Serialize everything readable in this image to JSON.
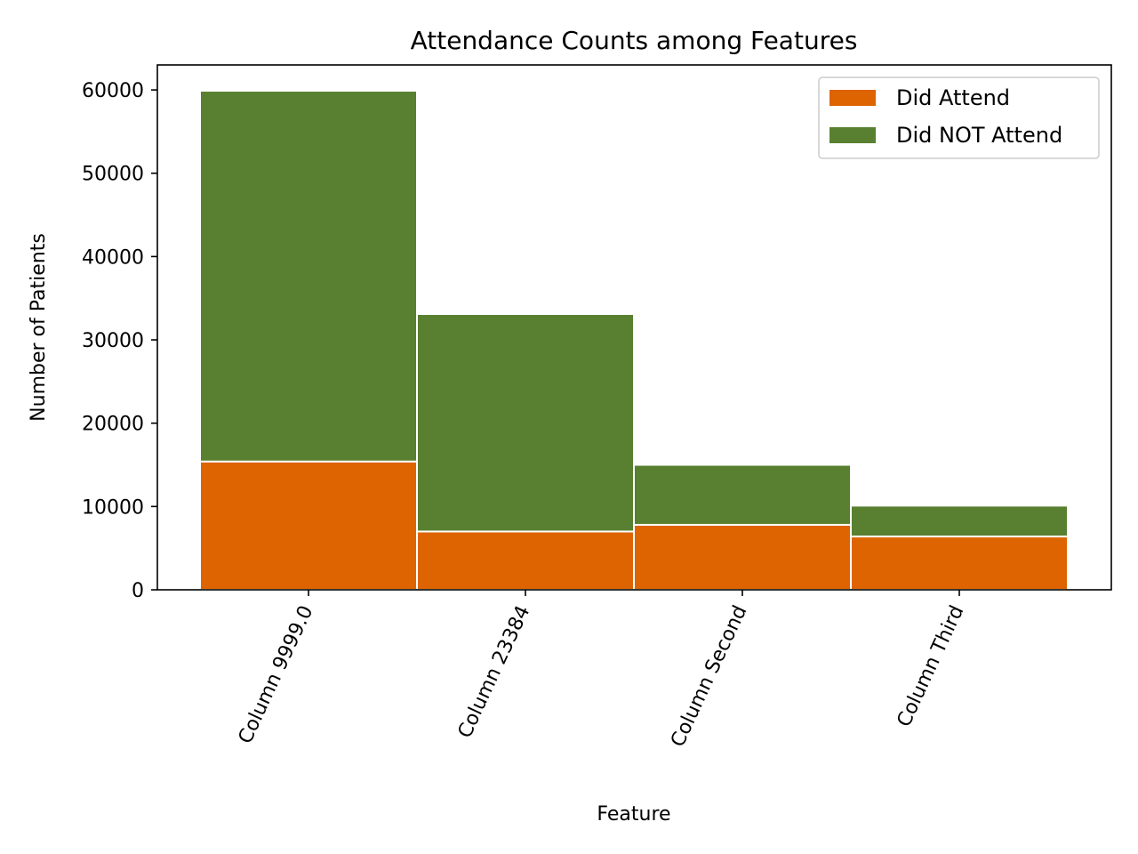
{
  "chart_data": {
    "type": "bar",
    "stacked": true,
    "title": "Attendance Counts among Features",
    "xlabel": "Feature",
    "ylabel": "Number of Patients",
    "categories": [
      "Column 9999.0",
      "Column 23384",
      "Column Second",
      "Column Third"
    ],
    "series": [
      {
        "name": "Did Attend",
        "color": "#dd6400",
        "values": [
          15400,
          7000,
          7800,
          6400
        ]
      },
      {
        "name": "Did NOT Attend",
        "color": "#588030",
        "values": [
          44500,
          26100,
          7200,
          3700
        ]
      }
    ],
    "ylim": [
      0,
      63000
    ],
    "yticks": [
      0,
      10000,
      20000,
      30000,
      40000,
      50000,
      60000
    ],
    "ytick_labels": [
      "0",
      "10000",
      "20000",
      "30000",
      "40000",
      "50000",
      "60000"
    ],
    "legend_position": "top-right",
    "grid": false
  }
}
